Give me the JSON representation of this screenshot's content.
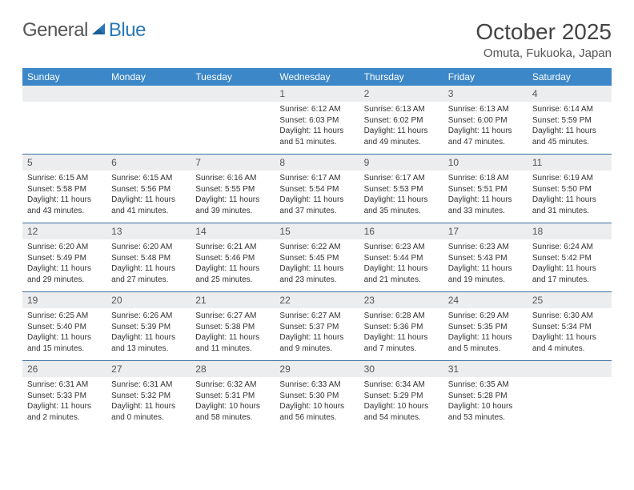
{
  "logo": {
    "part1": "General",
    "part2": "Blue"
  },
  "title": "October 2025",
  "location": "Omuta, Fukuoka, Japan",
  "colors": {
    "header_bg": "#3b87c8",
    "header_text": "#ffffff",
    "daynum_bg": "#ecedee",
    "row_divider": "#3b6fa0",
    "logo_blue": "#2a78b8"
  },
  "dayNames": [
    "Sunday",
    "Monday",
    "Tuesday",
    "Wednesday",
    "Thursday",
    "Friday",
    "Saturday"
  ],
  "weeks": [
    [
      {
        "num": "",
        "lines": []
      },
      {
        "num": "",
        "lines": []
      },
      {
        "num": "",
        "lines": []
      },
      {
        "num": "1",
        "lines": [
          "Sunrise: 6:12 AM",
          "Sunset: 6:03 PM",
          "Daylight: 11 hours",
          "and 51 minutes."
        ]
      },
      {
        "num": "2",
        "lines": [
          "Sunrise: 6:13 AM",
          "Sunset: 6:02 PM",
          "Daylight: 11 hours",
          "and 49 minutes."
        ]
      },
      {
        "num": "3",
        "lines": [
          "Sunrise: 6:13 AM",
          "Sunset: 6:00 PM",
          "Daylight: 11 hours",
          "and 47 minutes."
        ]
      },
      {
        "num": "4",
        "lines": [
          "Sunrise: 6:14 AM",
          "Sunset: 5:59 PM",
          "Daylight: 11 hours",
          "and 45 minutes."
        ]
      }
    ],
    [
      {
        "num": "5",
        "lines": [
          "Sunrise: 6:15 AM",
          "Sunset: 5:58 PM",
          "Daylight: 11 hours",
          "and 43 minutes."
        ]
      },
      {
        "num": "6",
        "lines": [
          "Sunrise: 6:15 AM",
          "Sunset: 5:56 PM",
          "Daylight: 11 hours",
          "and 41 minutes."
        ]
      },
      {
        "num": "7",
        "lines": [
          "Sunrise: 6:16 AM",
          "Sunset: 5:55 PM",
          "Daylight: 11 hours",
          "and 39 minutes."
        ]
      },
      {
        "num": "8",
        "lines": [
          "Sunrise: 6:17 AM",
          "Sunset: 5:54 PM",
          "Daylight: 11 hours",
          "and 37 minutes."
        ]
      },
      {
        "num": "9",
        "lines": [
          "Sunrise: 6:17 AM",
          "Sunset: 5:53 PM",
          "Daylight: 11 hours",
          "and 35 minutes."
        ]
      },
      {
        "num": "10",
        "lines": [
          "Sunrise: 6:18 AM",
          "Sunset: 5:51 PM",
          "Daylight: 11 hours",
          "and 33 minutes."
        ]
      },
      {
        "num": "11",
        "lines": [
          "Sunrise: 6:19 AM",
          "Sunset: 5:50 PM",
          "Daylight: 11 hours",
          "and 31 minutes."
        ]
      }
    ],
    [
      {
        "num": "12",
        "lines": [
          "Sunrise: 6:20 AM",
          "Sunset: 5:49 PM",
          "Daylight: 11 hours",
          "and 29 minutes."
        ]
      },
      {
        "num": "13",
        "lines": [
          "Sunrise: 6:20 AM",
          "Sunset: 5:48 PM",
          "Daylight: 11 hours",
          "and 27 minutes."
        ]
      },
      {
        "num": "14",
        "lines": [
          "Sunrise: 6:21 AM",
          "Sunset: 5:46 PM",
          "Daylight: 11 hours",
          "and 25 minutes."
        ]
      },
      {
        "num": "15",
        "lines": [
          "Sunrise: 6:22 AM",
          "Sunset: 5:45 PM",
          "Daylight: 11 hours",
          "and 23 minutes."
        ]
      },
      {
        "num": "16",
        "lines": [
          "Sunrise: 6:23 AM",
          "Sunset: 5:44 PM",
          "Daylight: 11 hours",
          "and 21 minutes."
        ]
      },
      {
        "num": "17",
        "lines": [
          "Sunrise: 6:23 AM",
          "Sunset: 5:43 PM",
          "Daylight: 11 hours",
          "and 19 minutes."
        ]
      },
      {
        "num": "18",
        "lines": [
          "Sunrise: 6:24 AM",
          "Sunset: 5:42 PM",
          "Daylight: 11 hours",
          "and 17 minutes."
        ]
      }
    ],
    [
      {
        "num": "19",
        "lines": [
          "Sunrise: 6:25 AM",
          "Sunset: 5:40 PM",
          "Daylight: 11 hours",
          "and 15 minutes."
        ]
      },
      {
        "num": "20",
        "lines": [
          "Sunrise: 6:26 AM",
          "Sunset: 5:39 PM",
          "Daylight: 11 hours",
          "and 13 minutes."
        ]
      },
      {
        "num": "21",
        "lines": [
          "Sunrise: 6:27 AM",
          "Sunset: 5:38 PM",
          "Daylight: 11 hours",
          "and 11 minutes."
        ]
      },
      {
        "num": "22",
        "lines": [
          "Sunrise: 6:27 AM",
          "Sunset: 5:37 PM",
          "Daylight: 11 hours",
          "and 9 minutes."
        ]
      },
      {
        "num": "23",
        "lines": [
          "Sunrise: 6:28 AM",
          "Sunset: 5:36 PM",
          "Daylight: 11 hours",
          "and 7 minutes."
        ]
      },
      {
        "num": "24",
        "lines": [
          "Sunrise: 6:29 AM",
          "Sunset: 5:35 PM",
          "Daylight: 11 hours",
          "and 5 minutes."
        ]
      },
      {
        "num": "25",
        "lines": [
          "Sunrise: 6:30 AM",
          "Sunset: 5:34 PM",
          "Daylight: 11 hours",
          "and 4 minutes."
        ]
      }
    ],
    [
      {
        "num": "26",
        "lines": [
          "Sunrise: 6:31 AM",
          "Sunset: 5:33 PM",
          "Daylight: 11 hours",
          "and 2 minutes."
        ]
      },
      {
        "num": "27",
        "lines": [
          "Sunrise: 6:31 AM",
          "Sunset: 5:32 PM",
          "Daylight: 11 hours",
          "and 0 minutes."
        ]
      },
      {
        "num": "28",
        "lines": [
          "Sunrise: 6:32 AM",
          "Sunset: 5:31 PM",
          "Daylight: 10 hours",
          "and 58 minutes."
        ]
      },
      {
        "num": "29",
        "lines": [
          "Sunrise: 6:33 AM",
          "Sunset: 5:30 PM",
          "Daylight: 10 hours",
          "and 56 minutes."
        ]
      },
      {
        "num": "30",
        "lines": [
          "Sunrise: 6:34 AM",
          "Sunset: 5:29 PM",
          "Daylight: 10 hours",
          "and 54 minutes."
        ]
      },
      {
        "num": "31",
        "lines": [
          "Sunrise: 6:35 AM",
          "Sunset: 5:28 PM",
          "Daylight: 10 hours",
          "and 53 minutes."
        ]
      },
      {
        "num": "",
        "lines": []
      }
    ]
  ]
}
